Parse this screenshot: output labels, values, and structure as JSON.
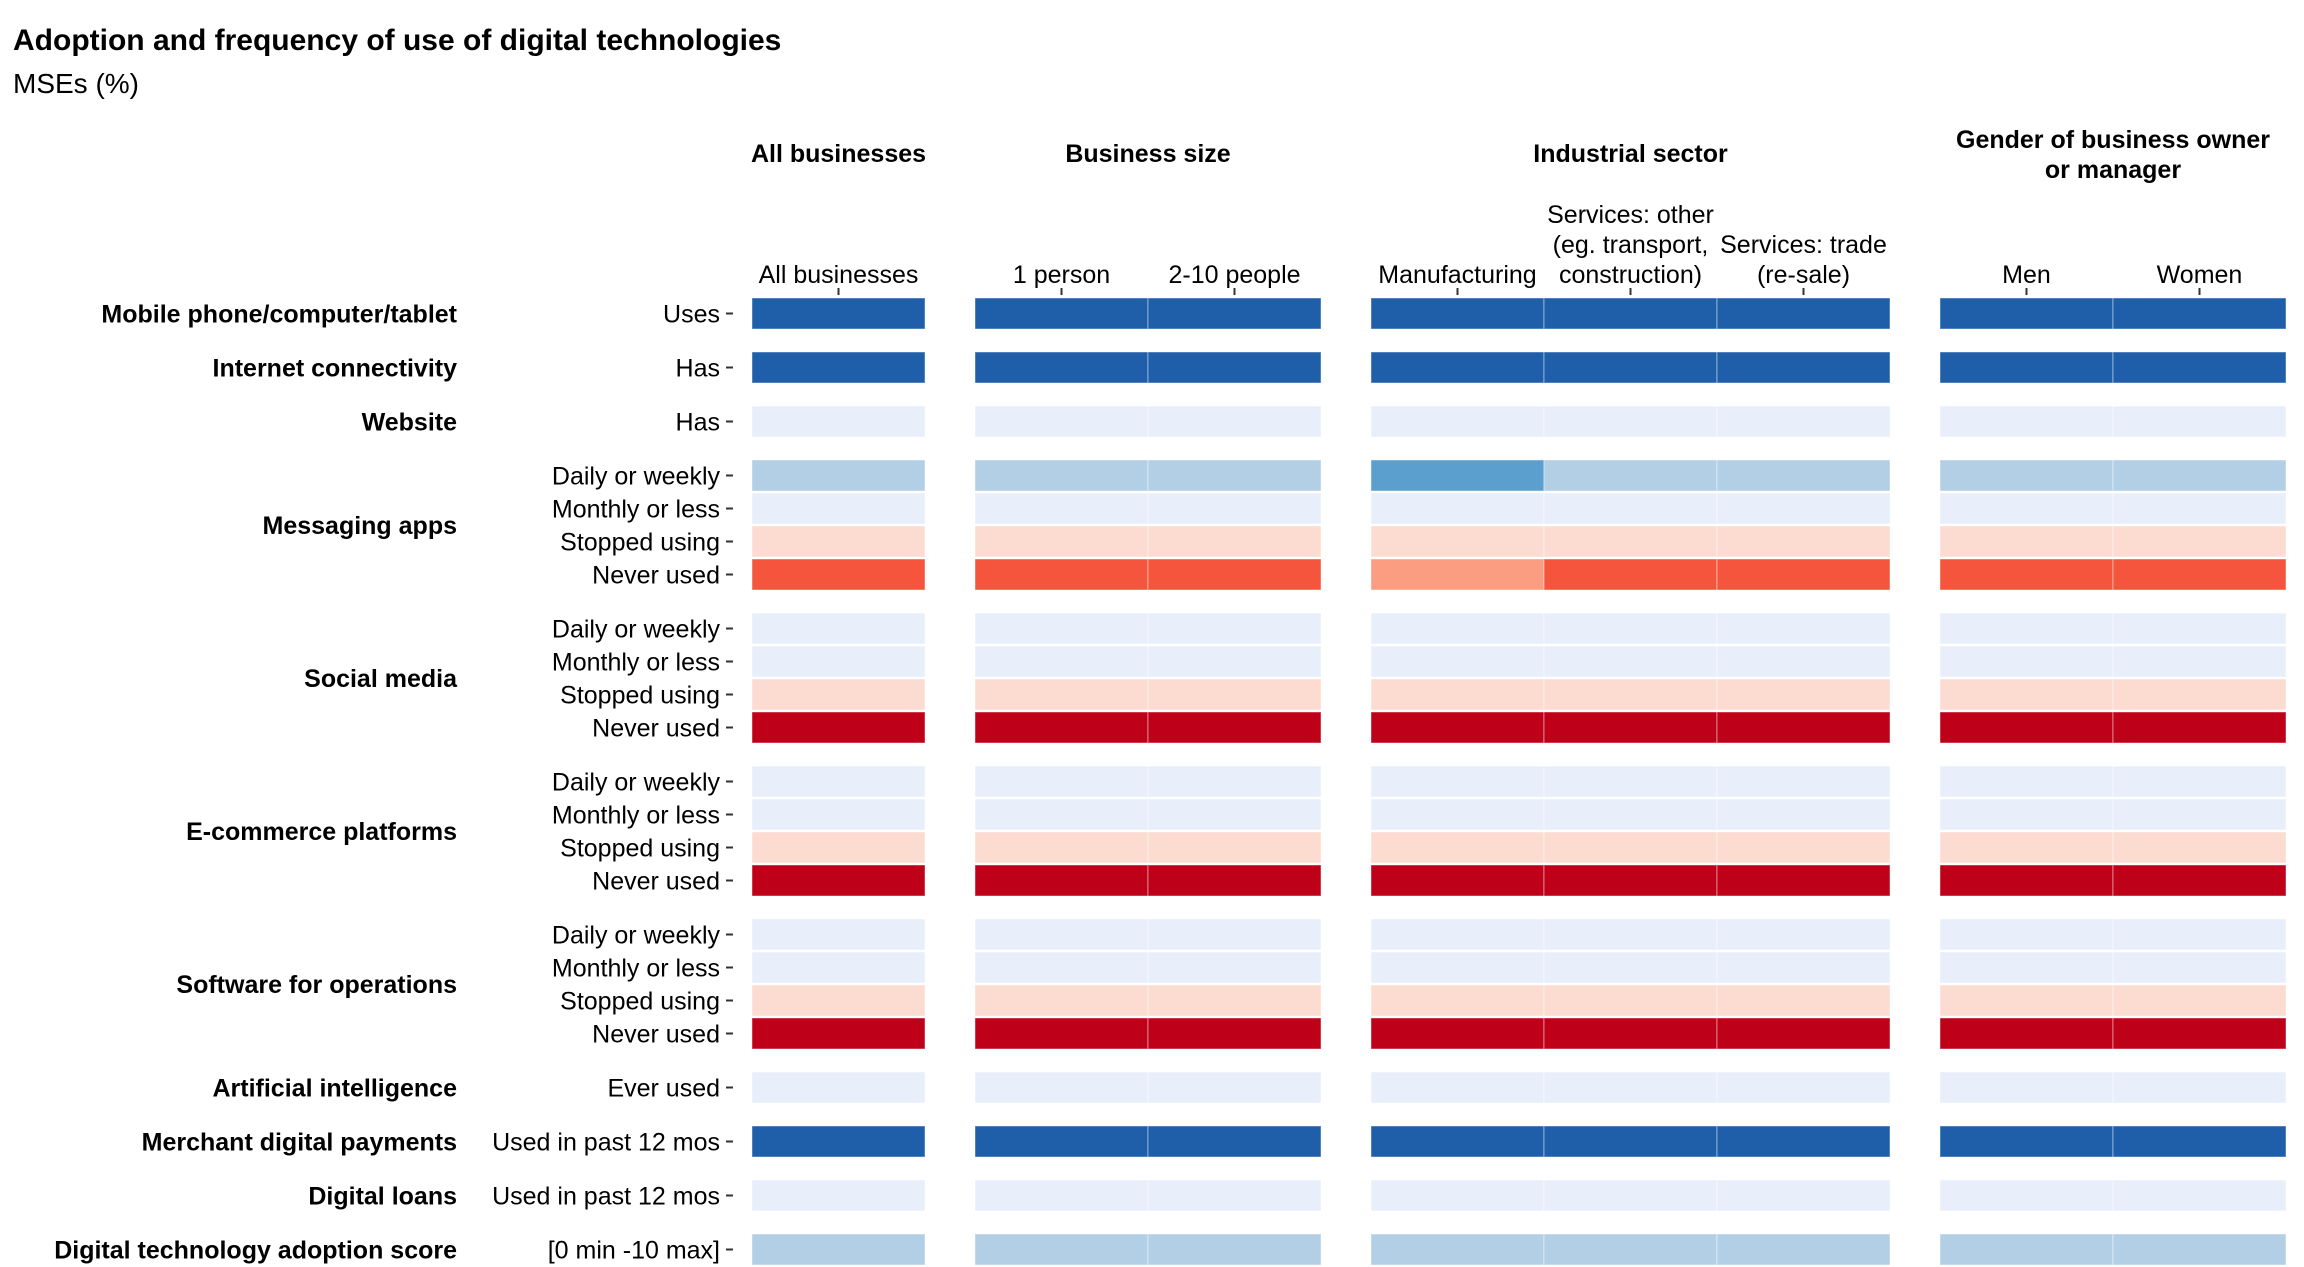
{
  "chart_data": {
    "type": "heatmap",
    "title": "Adoption and frequency of use of digital technologies",
    "subtitle": "MSEs (%)",
    "groups": [
      {
        "name": "All businesses",
        "columns": [
          [
            "All businesses"
          ]
        ]
      },
      {
        "name": "Business size",
        "columns": [
          [
            "1 person"
          ],
          [
            "2-10 people"
          ]
        ]
      },
      {
        "name": "Industrial sector",
        "columns": [
          [
            "Manufacturing"
          ],
          [
            "Services: other",
            "(eg. transport,",
            "construction)"
          ],
          [
            "Services: trade",
            "(re-sale)"
          ]
        ]
      },
      {
        "name": "Gender of business owner or manager",
        "name_lines": [
          "Gender of business owner",
          "or manager"
        ],
        "columns": [
          [
            "Men"
          ],
          [
            "Women"
          ]
        ]
      }
    ],
    "categories": [
      {
        "name": "Mobile phone/computer/tablet",
        "rows": [
          "Uses"
        ]
      },
      {
        "name": "Internet connectivity",
        "rows": [
          "Has"
        ]
      },
      {
        "name": "Website",
        "rows": [
          "Has"
        ]
      },
      {
        "name": "Messaging apps",
        "rows": [
          "Daily or weekly",
          "Monthly or less",
          "Stopped using",
          "Never used"
        ]
      },
      {
        "name": "Social media",
        "rows": [
          "Daily or weekly",
          "Monthly or less",
          "Stopped using",
          "Never used"
        ]
      },
      {
        "name": "E-commerce platforms",
        "rows": [
          "Daily or weekly",
          "Monthly or less",
          "Stopped using",
          "Never used"
        ]
      },
      {
        "name": "Software for operations",
        "rows": [
          "Daily or weekly",
          "Monthly or less",
          "Stopped using",
          "Never used"
        ]
      },
      {
        "name": "Artificial intelligence",
        "rows": [
          "Ever used"
        ]
      },
      {
        "name": "Merchant digital payments",
        "rows": [
          "Used in past 12 mos"
        ]
      },
      {
        "name": "Digital loans",
        "rows": [
          "Used in past 12 mos"
        ]
      },
      {
        "name": "Digital technology adoption score",
        "rows": [
          "[0 min -10 max]"
        ]
      }
    ],
    "palette": {
      "blue_dark": "#1f5ea8",
      "blue_mid": "#5b9fcf",
      "blue_light": "#b3cfe5",
      "blue_pale": "#e8effb",
      "red_pale": "#fcdcd1",
      "red_light": "#fa9d80",
      "red_mid": "#f6553d",
      "red_dark": "#be0119"
    },
    "cells": [
      [
        "blue_dark",
        "blue_dark",
        "blue_dark",
        "blue_dark",
        "blue_dark",
        "blue_dark",
        "blue_dark",
        "blue_dark"
      ],
      [
        "blue_dark",
        "blue_dark",
        "blue_dark",
        "blue_dark",
        "blue_dark",
        "blue_dark",
        "blue_dark",
        "blue_dark"
      ],
      [
        "blue_pale",
        "blue_pale",
        "blue_pale",
        "blue_pale",
        "blue_pale",
        "blue_pale",
        "blue_pale",
        "blue_pale"
      ],
      [
        "blue_light",
        "blue_light",
        "blue_light",
        "blue_mid",
        "blue_light",
        "blue_light",
        "blue_light",
        "blue_light"
      ],
      [
        "blue_pale",
        "blue_pale",
        "blue_pale",
        "blue_pale",
        "blue_pale",
        "blue_pale",
        "blue_pale",
        "blue_pale"
      ],
      [
        "red_pale",
        "red_pale",
        "red_pale",
        "red_pale",
        "red_pale",
        "red_pale",
        "red_pale",
        "red_pale"
      ],
      [
        "red_mid",
        "red_mid",
        "red_mid",
        "red_light",
        "red_mid",
        "red_mid",
        "red_mid",
        "red_mid"
      ],
      [
        "blue_pale",
        "blue_pale",
        "blue_pale",
        "blue_pale",
        "blue_pale",
        "blue_pale",
        "blue_pale",
        "blue_pale"
      ],
      [
        "blue_pale",
        "blue_pale",
        "blue_pale",
        "blue_pale",
        "blue_pale",
        "blue_pale",
        "blue_pale",
        "blue_pale"
      ],
      [
        "red_pale",
        "red_pale",
        "red_pale",
        "red_pale",
        "red_pale",
        "red_pale",
        "red_pale",
        "red_pale"
      ],
      [
        "red_dark",
        "red_dark",
        "red_dark",
        "red_dark",
        "red_dark",
        "red_dark",
        "red_dark",
        "red_dark"
      ],
      [
        "blue_pale",
        "blue_pale",
        "blue_pale",
        "blue_pale",
        "blue_pale",
        "blue_pale",
        "blue_pale",
        "blue_pale"
      ],
      [
        "blue_pale",
        "blue_pale",
        "blue_pale",
        "blue_pale",
        "blue_pale",
        "blue_pale",
        "blue_pale",
        "blue_pale"
      ],
      [
        "red_pale",
        "red_pale",
        "red_pale",
        "red_pale",
        "red_pale",
        "red_pale",
        "red_pale",
        "red_pale"
      ],
      [
        "red_dark",
        "red_dark",
        "red_dark",
        "red_dark",
        "red_dark",
        "red_dark",
        "red_dark",
        "red_dark"
      ],
      [
        "blue_pale",
        "blue_pale",
        "blue_pale",
        "blue_pale",
        "blue_pale",
        "blue_pale",
        "blue_pale",
        "blue_pale"
      ],
      [
        "blue_pale",
        "blue_pale",
        "blue_pale",
        "blue_pale",
        "blue_pale",
        "blue_pale",
        "blue_pale",
        "blue_pale"
      ],
      [
        "red_pale",
        "red_pale",
        "red_pale",
        "red_pale",
        "red_pale",
        "red_pale",
        "red_pale",
        "red_pale"
      ],
      [
        "red_dark",
        "red_dark",
        "red_dark",
        "red_dark",
        "red_dark",
        "red_dark",
        "red_dark",
        "red_dark"
      ],
      [
        "blue_pale",
        "blue_pale",
        "blue_pale",
        "blue_pale",
        "blue_pale",
        "blue_pale",
        "blue_pale",
        "blue_pale"
      ],
      [
        "blue_dark",
        "blue_dark",
        "blue_dark",
        "blue_dark",
        "blue_dark",
        "blue_dark",
        "blue_dark",
        "blue_dark"
      ],
      [
        "blue_pale",
        "blue_pale",
        "blue_pale",
        "blue_pale",
        "blue_pale",
        "blue_pale",
        "blue_pale",
        "blue_pale"
      ],
      [
        "blue_light",
        "blue_light",
        "blue_light",
        "blue_light",
        "blue_light",
        "blue_light",
        "blue_light",
        "blue_light"
      ]
    ],
    "legend": "none",
    "grid": false
  }
}
